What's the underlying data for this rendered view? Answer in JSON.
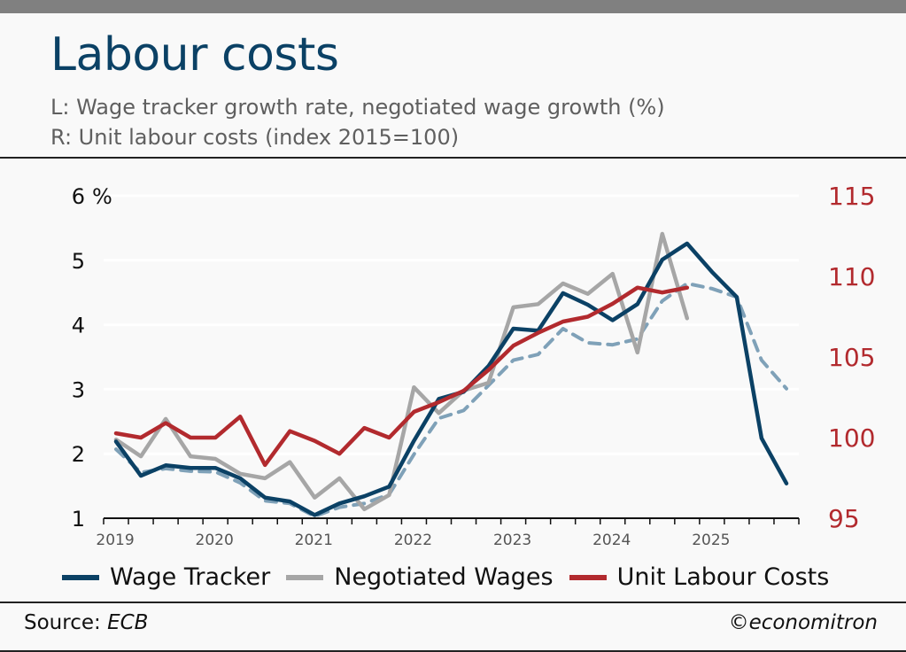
{
  "header": {
    "title": "Labour costs",
    "subtitle_left": "L: Wage tracker growth rate, negotiated wage growth (%)",
    "subtitle_right": "R: Unit labour costs (index 2015=100)"
  },
  "footer": {
    "source_label": "Source:",
    "source": "ECB",
    "credit": "©economitron"
  },
  "chart_data": {
    "type": "line",
    "title": "Labour costs",
    "x_unit": "quarter (2019Q1 .. 2025Q4)",
    "x_tick_labels": [
      "2019",
      "2020",
      "2021",
      "2022",
      "2023",
      "2024",
      "2025"
    ],
    "left_axis": {
      "label": "%",
      "ylim": [
        1,
        6
      ],
      "ticks": [
        "1",
        "2",
        "3",
        "4",
        "5",
        "6"
      ]
    },
    "right_axis": {
      "label": "index 2015=100",
      "ylim": [
        95,
        115
      ],
      "ticks": [
        "95",
        "100",
        "105",
        "110",
        "115"
      ]
    },
    "grid": true,
    "legend_placement": "bottom",
    "series": [
      {
        "name": "Wage Tracker",
        "axis": "left",
        "color": "#0b4165",
        "style": "solid",
        "values": [
          2.19,
          1.66,
          1.82,
          1.78,
          1.78,
          1.62,
          1.32,
          1.26,
          1.05,
          1.23,
          1.34,
          1.49,
          2.2,
          2.85,
          2.96,
          3.36,
          3.94,
          3.91,
          4.49,
          4.31,
          4.07,
          4.32,
          5.01,
          5.26,
          4.82,
          4.43,
          2.24,
          1.54
        ]
      },
      {
        "name": "Negotiated Wages",
        "axis": "left",
        "color": "#a6a6a6",
        "style": "solid",
        "values": [
          2.22,
          1.96,
          2.54,
          1.96,
          1.92,
          1.69,
          1.62,
          1.87,
          1.32,
          1.62,
          1.14,
          1.36,
          3.03,
          2.63,
          2.98,
          3.1,
          4.27,
          4.32,
          4.64,
          4.48,
          4.79,
          3.57,
          5.41,
          4.1
        ]
      },
      {
        "name": "Unit Labour Costs",
        "axis": "right",
        "color": "#b22a2e",
        "style": "solid",
        "values": [
          100.27,
          100.0,
          100.9,
          100.0,
          100.0,
          101.3,
          98.3,
          100.4,
          99.8,
          99.0,
          100.6,
          100.0,
          101.6,
          102.2,
          102.9,
          104.2,
          105.7,
          106.5,
          107.2,
          107.5,
          108.3,
          109.3,
          109.0,
          109.3
        ]
      },
      {
        "name": "",
        "axis": "left",
        "color": "#7fa1b8",
        "style": "dashed",
        "values": [
          2.07,
          1.71,
          1.77,
          1.73,
          1.72,
          1.55,
          1.27,
          1.23,
          1.03,
          1.17,
          1.23,
          1.37,
          1.99,
          2.55,
          2.67,
          3.06,
          3.45,
          3.54,
          3.94,
          3.72,
          3.69,
          3.78,
          4.37,
          4.64,
          4.56,
          4.43,
          3.45,
          3.01
        ]
      }
    ]
  }
}
